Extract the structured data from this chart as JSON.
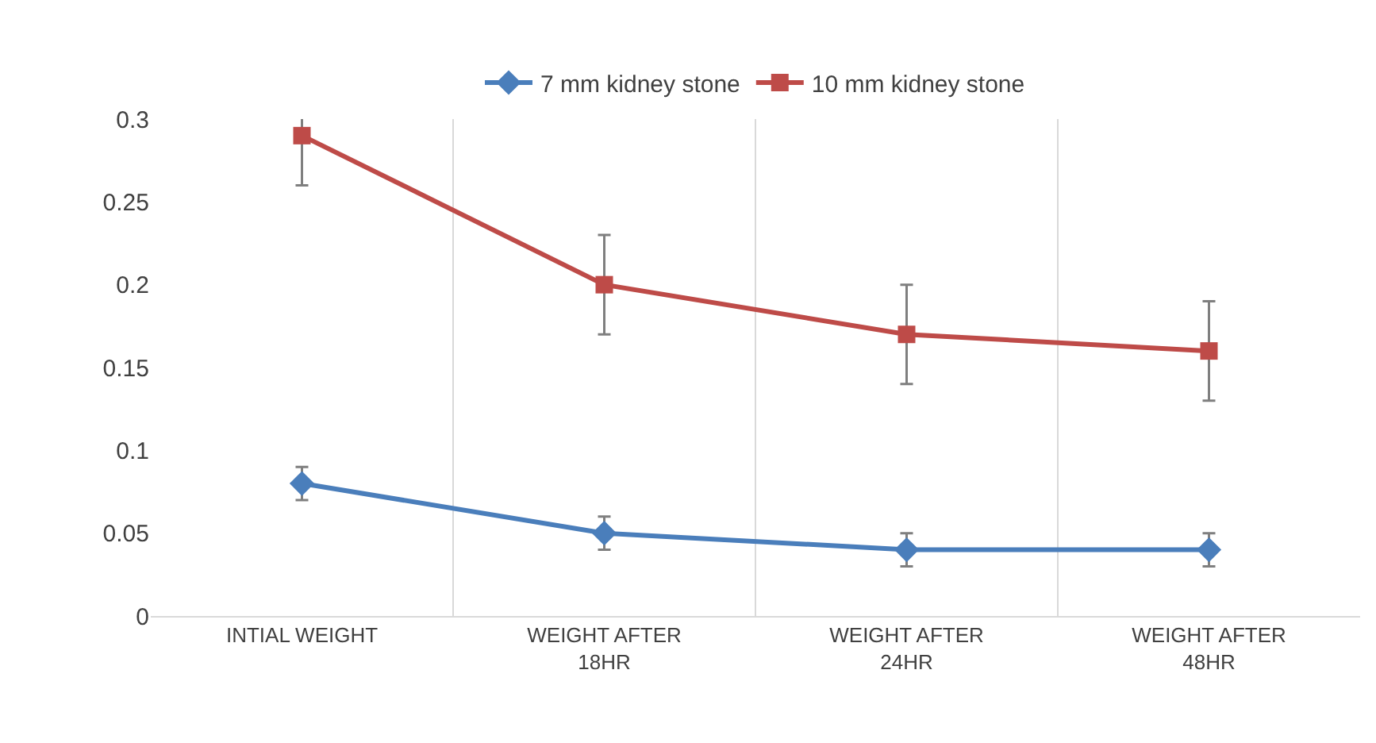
{
  "chart_data": {
    "type": "line",
    "categories": [
      "INTIAL WEIGHT",
      "WEIGHT AFTER 18HR",
      "WEIGHT AFTER 24HR",
      "WEIGHT AFTER 48HR"
    ],
    "series": [
      {
        "name": "7 mm kidney stone",
        "color": "#4a7ebb",
        "marker": "diamond",
        "values": [
          0.08,
          0.05,
          0.04,
          0.04
        ],
        "errors": [
          0.01,
          0.01,
          0.01,
          0.01
        ]
      },
      {
        "name": "10 mm kidney stone",
        "color": "#be4b48",
        "marker": "square",
        "values": [
          0.29,
          0.2,
          0.17,
          0.16
        ],
        "errors": [
          0.03,
          0.03,
          0.03,
          0.03
        ]
      }
    ],
    "ylim": [
      0,
      0.3
    ],
    "yticks": [
      0,
      0.05,
      0.1,
      0.15,
      0.2,
      0.25,
      0.3
    ],
    "grid": "x",
    "legend": "top",
    "line_style": "solid"
  }
}
